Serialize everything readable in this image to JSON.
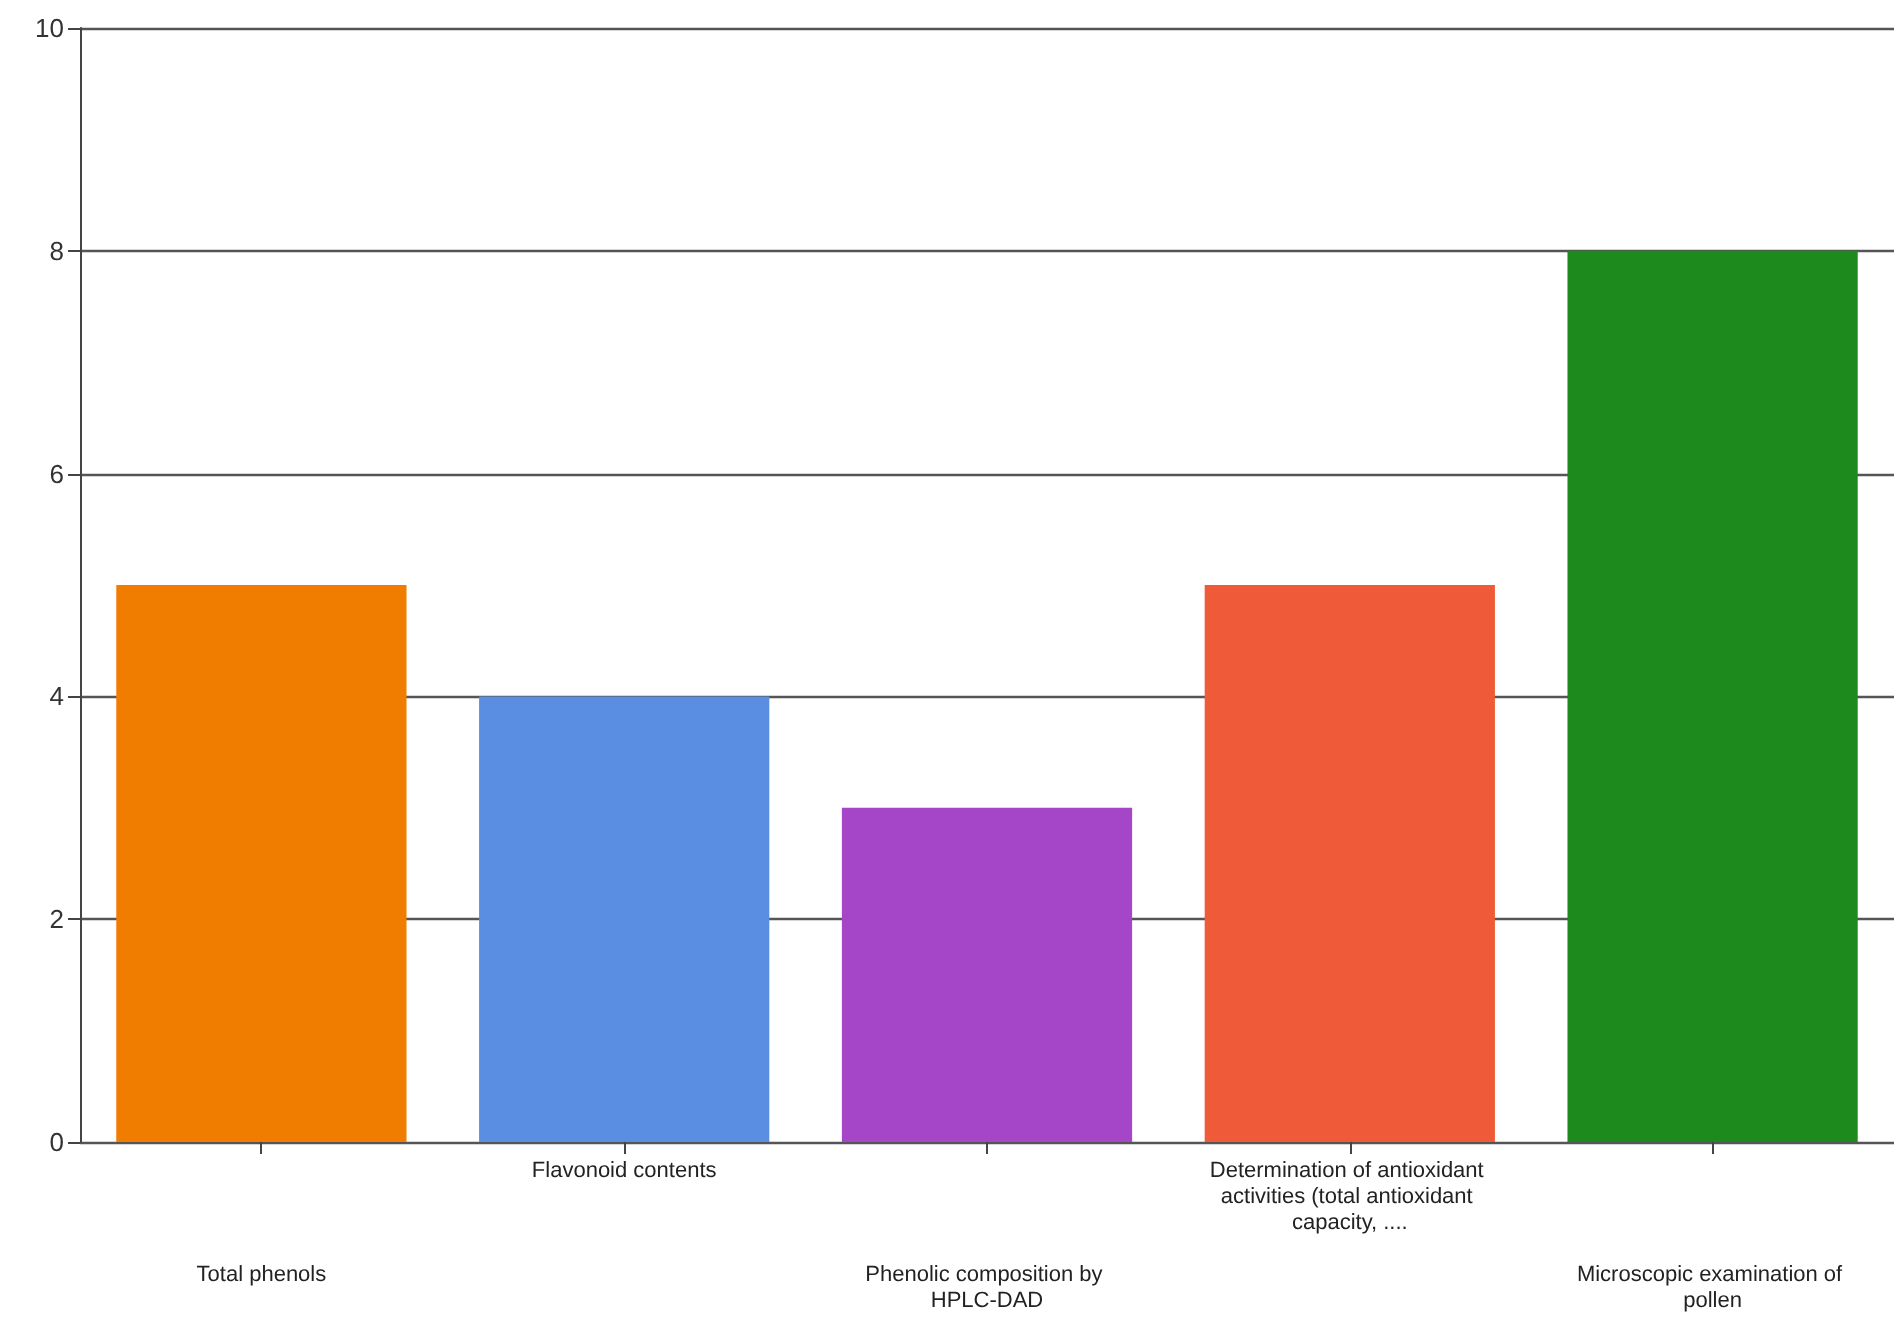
{
  "chart_data": {
    "type": "bar",
    "categories": [
      "Total phenols",
      "Flavonoid contents",
      "Phenolic composition by HPLC-DAD",
      "Determination of antioxidant activities (total antioxidant capacity, ....",
      "Microscopic examination of pollen"
    ],
    "values": [
      5,
      4,
      3,
      5,
      8
    ],
    "colors": [
      "#f07c00",
      "#5a8ee2",
      "#a545c8",
      "#ef5a38",
      "#1d8a1d"
    ],
    "ylim": [
      0,
      10
    ],
    "yticks": [
      0,
      2,
      4,
      6,
      8,
      10
    ],
    "grid": "y"
  }
}
